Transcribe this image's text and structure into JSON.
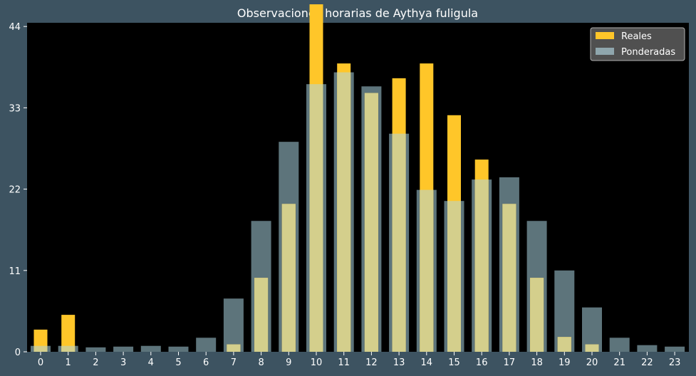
{
  "chart_data": {
    "type": "bar",
    "title": "Observaciones horarias de Aythya fuligula",
    "xlabel": "",
    "ylabel": "",
    "categories": [
      "0",
      "1",
      "2",
      "3",
      "4",
      "5",
      "6",
      "7",
      "8",
      "9",
      "10",
      "11",
      "12",
      "13",
      "14",
      "15",
      "16",
      "17",
      "18",
      "19",
      "20",
      "21",
      "22",
      "23"
    ],
    "yticks": [
      0,
      11,
      22,
      33,
      44
    ],
    "ylim": [
      0,
      44.5
    ],
    "grid": false,
    "legend_position": "top-right",
    "series": [
      {
        "name": "Reales",
        "color": "#ffc629",
        "values": [
          3,
          5,
          0,
          0,
          0,
          0,
          0,
          1,
          10,
          20,
          47,
          39,
          35,
          37,
          39,
          32,
          26,
          20,
          10,
          2,
          1,
          0,
          0,
          0
        ]
      },
      {
        "name": "Ponderadas",
        "color": "#8fa6ad",
        "values": [
          0.8,
          0.8,
          0.6,
          0.7,
          0.8,
          0.7,
          1.9,
          7.2,
          17.7,
          28.4,
          36.2,
          37.8,
          35.9,
          29.5,
          21.9,
          20.4,
          23.3,
          23.6,
          17.7,
          11,
          6,
          1.9,
          0.9,
          0.7
        ]
      }
    ]
  }
}
